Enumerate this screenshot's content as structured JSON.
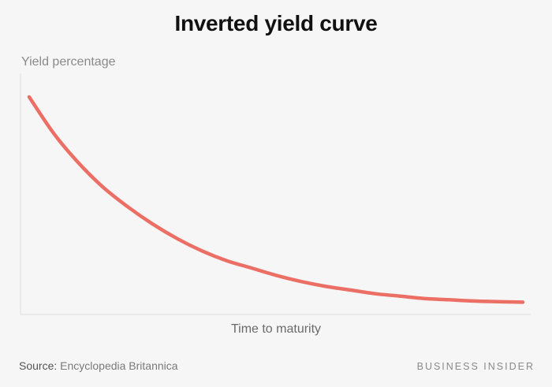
{
  "header": {
    "title": "Inverted yield curve"
  },
  "footer": {
    "source_label": "Source:",
    "source_text": "Encyclopedia Britannica",
    "brand": "BUSINESS INSIDER"
  },
  "chart_data": {
    "type": "line",
    "title": "Inverted yield curve",
    "xlabel": "Time to maturity",
    "ylabel": "Yield percentage",
    "xlim": [
      0,
      1
    ],
    "ylim": [
      0,
      1
    ],
    "grid": false,
    "series": [
      {
        "color": "#ec6f66",
        "x": [
          0,
          0.05,
          0.1,
          0.15,
          0.2,
          0.25,
          0.3,
          0.35,
          0.4,
          0.45,
          0.5,
          0.55,
          0.6,
          0.65,
          0.7,
          0.75,
          0.8,
          0.85,
          0.9,
          0.95,
          1
        ],
        "y": [
          0.9,
          0.75,
          0.63,
          0.53,
          0.45,
          0.38,
          0.32,
          0.27,
          0.23,
          0.2,
          0.17,
          0.145,
          0.125,
          0.11,
          0.095,
          0.085,
          0.075,
          0.07,
          0.065,
          0.062,
          0.06
        ]
      }
    ]
  }
}
